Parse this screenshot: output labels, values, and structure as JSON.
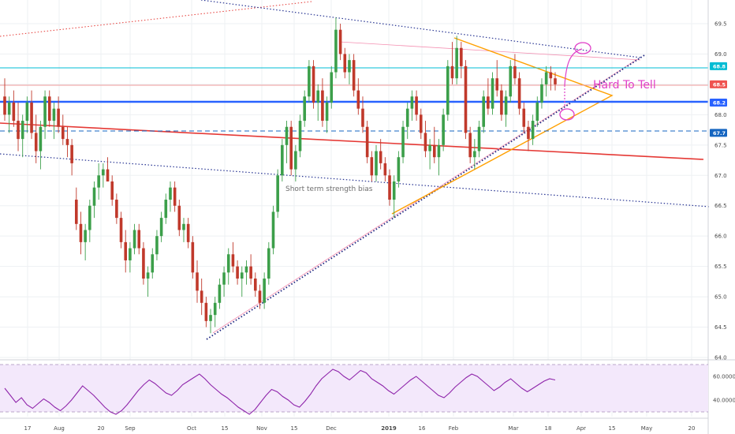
{
  "chart_data": [
    {
      "type": "candlestick",
      "ylim": [
        64.0,
        69.7
      ],
      "price_axis_ticks": [
        "69.5",
        "69.0",
        "68.5",
        "68.0",
        "67.5",
        "67.0",
        "66.5",
        "66.0",
        "65.5",
        "65.0",
        "64.5",
        "64.0"
      ],
      "price_badges": [
        {
          "label": "68.8",
          "color": "#00bcd4"
        },
        {
          "label": "68.5",
          "color": "#ef5350"
        },
        {
          "label": "68.2",
          "color": "#2962ff"
        },
        {
          "label": "67.7",
          "color": "#1565c0"
        }
      ],
      "annotations": {
        "middle_text": "Short term strength bias",
        "hard_to_tell": "Hard To Tell"
      },
      "candles_ohlc": [
        [
          68.3,
          68.6,
          67.9,
          68.0
        ],
        [
          68.0,
          68.3,
          67.7,
          68.2
        ],
        [
          68.2,
          68.4,
          67.8,
          67.9
        ],
        [
          67.9,
          68.2,
          67.4,
          67.6
        ],
        [
          67.6,
          68.0,
          67.3,
          67.9
        ],
        [
          67.9,
          68.3,
          67.7,
          68.2
        ],
        [
          68.2,
          68.4,
          67.6,
          67.7
        ],
        [
          67.7,
          68.0,
          67.2,
          67.4
        ],
        [
          67.4,
          67.9,
          67.1,
          67.8
        ],
        [
          67.8,
          68.4,
          67.6,
          68.3
        ],
        [
          68.3,
          68.4,
          67.8,
          67.9
        ],
        [
          67.9,
          68.2,
          67.6,
          68.1
        ],
        [
          68.1,
          68.3,
          67.7,
          67.8
        ],
        [
          67.8,
          68.0,
          67.5,
          67.6
        ],
        [
          67.6,
          67.8,
          67.3,
          67.5
        ],
        [
          67.5,
          67.6,
          67.0,
          67.2
        ],
        [
          66.6,
          66.8,
          66.1,
          66.2
        ],
        [
          66.2,
          66.4,
          65.7,
          65.9
        ],
        [
          65.9,
          66.2,
          65.6,
          66.1
        ],
        [
          66.1,
          66.6,
          65.9,
          66.5
        ],
        [
          66.5,
          66.9,
          66.3,
          66.8
        ],
        [
          66.8,
          67.2,
          66.6,
          67.0
        ],
        [
          67.0,
          67.2,
          66.8,
          67.1
        ],
        [
          67.1,
          67.3,
          66.9,
          66.9
        ],
        [
          66.9,
          67.0,
          66.5,
          66.6
        ],
        [
          66.6,
          66.7,
          66.2,
          66.3
        ],
        [
          66.3,
          66.4,
          65.8,
          65.9
        ],
        [
          65.9,
          66.1,
          65.4,
          65.6
        ],
        [
          65.6,
          65.9,
          65.4,
          65.8
        ],
        [
          65.8,
          66.2,
          65.7,
          66.1
        ],
        [
          66.1,
          66.2,
          65.7,
          65.8
        ],
        [
          65.8,
          65.9,
          65.2,
          65.3
        ],
        [
          65.3,
          65.5,
          65.0,
          65.4
        ],
        [
          65.4,
          65.8,
          65.3,
          65.7
        ],
        [
          65.7,
          66.1,
          65.6,
          66.0
        ],
        [
          66.0,
          66.4,
          65.9,
          66.3
        ],
        [
          66.3,
          66.7,
          66.2,
          66.6
        ],
        [
          66.6,
          66.9,
          66.4,
          66.8
        ],
        [
          66.8,
          66.9,
          66.4,
          66.5
        ],
        [
          66.5,
          66.6,
          66.0,
          66.1
        ],
        [
          66.1,
          66.3,
          65.9,
          66.2
        ],
        [
          66.2,
          66.3,
          65.8,
          65.9
        ],
        [
          65.9,
          66.0,
          65.3,
          65.4
        ],
        [
          65.4,
          65.6,
          64.9,
          65.1
        ],
        [
          65.1,
          65.3,
          64.7,
          64.9
        ],
        [
          64.9,
          65.0,
          64.5,
          64.6
        ],
        [
          64.6,
          64.8,
          64.4,
          64.7
        ],
        [
          64.7,
          65.0,
          64.5,
          64.9
        ],
        [
          64.9,
          65.3,
          64.8,
          65.2
        ],
        [
          65.2,
          65.5,
          65.0,
          65.4
        ],
        [
          65.4,
          65.8,
          65.2,
          65.7
        ],
        [
          65.7,
          65.9,
          65.4,
          65.5
        ],
        [
          65.5,
          65.6,
          65.2,
          65.3
        ],
        [
          65.3,
          65.5,
          65.0,
          65.4
        ],
        [
          65.4,
          65.6,
          65.2,
          65.5
        ],
        [
          65.5,
          65.7,
          65.2,
          65.3
        ],
        [
          65.3,
          65.4,
          65.0,
          65.1
        ],
        [
          65.1,
          65.2,
          64.8,
          64.9
        ],
        [
          64.9,
          65.4,
          64.8,
          65.3
        ],
        [
          65.3,
          65.9,
          65.2,
          65.8
        ],
        [
          65.8,
          66.5,
          65.7,
          66.4
        ],
        [
          66.4,
          67.1,
          66.3,
          67.0
        ],
        [
          67.0,
          67.6,
          66.9,
          67.5
        ],
        [
          67.5,
          67.9,
          67.2,
          67.8
        ],
        [
          67.8,
          67.9,
          67.0,
          67.1
        ],
        [
          67.1,
          67.5,
          66.9,
          67.4
        ],
        [
          67.4,
          68.0,
          67.3,
          67.9
        ],
        [
          67.9,
          68.4,
          67.8,
          68.3
        ],
        [
          68.3,
          68.9,
          68.2,
          68.8
        ],
        [
          68.8,
          68.9,
          68.1,
          68.2
        ],
        [
          68.2,
          68.5,
          67.9,
          68.4
        ],
        [
          68.4,
          68.6,
          67.8,
          67.9
        ],
        [
          67.9,
          68.3,
          67.7,
          68.2
        ],
        [
          68.2,
          68.8,
          68.1,
          68.7
        ],
        [
          68.7,
          69.6,
          68.6,
          69.4
        ],
        [
          69.4,
          69.5,
          68.9,
          69.0
        ],
        [
          69.0,
          69.1,
          68.6,
          68.7
        ],
        [
          68.7,
          69.0,
          68.5,
          68.9
        ],
        [
          68.9,
          69.0,
          68.3,
          68.4
        ],
        [
          68.4,
          68.6,
          68.0,
          68.1
        ],
        [
          68.1,
          68.3,
          67.7,
          67.8
        ],
        [
          67.8,
          67.9,
          67.2,
          67.3
        ],
        [
          67.3,
          67.4,
          66.9,
          67.0
        ],
        [
          67.0,
          67.5,
          66.9,
          67.4
        ],
        [
          67.4,
          67.6,
          67.1,
          67.2
        ],
        [
          67.2,
          67.3,
          66.9,
          67.0
        ],
        [
          67.0,
          67.1,
          66.5,
          66.6
        ],
        [
          66.6,
          67.0,
          66.3,
          66.9
        ],
        [
          66.9,
          67.4,
          66.8,
          67.3
        ],
        [
          67.3,
          67.9,
          67.2,
          67.8
        ],
        [
          67.8,
          68.2,
          67.6,
          68.1
        ],
        [
          68.1,
          68.4,
          67.9,
          68.3
        ],
        [
          68.3,
          68.4,
          67.9,
          68.0
        ],
        [
          68.0,
          68.1,
          67.6,
          67.7
        ],
        [
          67.7,
          67.9,
          67.3,
          67.4
        ],
        [
          67.4,
          67.6,
          67.1,
          67.5
        ],
        [
          67.5,
          67.8,
          67.2,
          67.3
        ],
        [
          67.3,
          67.6,
          67.0,
          67.5
        ],
        [
          67.5,
          68.1,
          67.4,
          68.0
        ],
        [
          68.0,
          68.9,
          67.9,
          68.8
        ],
        [
          68.8,
          69.2,
          68.5,
          68.6
        ],
        [
          68.6,
          69.3,
          68.5,
          69.1
        ],
        [
          69.1,
          69.2,
          68.6,
          68.8
        ],
        [
          68.8,
          68.9,
          67.6,
          67.7
        ],
        [
          67.7,
          67.8,
          67.2,
          67.3
        ],
        [
          67.3,
          67.6,
          67.1,
          67.4
        ],
        [
          67.4,
          67.9,
          67.3,
          67.8
        ],
        [
          67.8,
          68.4,
          67.7,
          68.3
        ],
        [
          68.3,
          68.6,
          68.0,
          68.1
        ],
        [
          68.1,
          68.7,
          68.0,
          68.6
        ],
        [
          68.6,
          68.9,
          68.3,
          68.4
        ],
        [
          68.4,
          68.5,
          67.9,
          68.0
        ],
        [
          68.0,
          68.4,
          67.8,
          68.3
        ],
        [
          68.3,
          68.9,
          68.2,
          68.8
        ],
        [
          68.8,
          69.0,
          68.5,
          68.6
        ],
        [
          68.6,
          68.7,
          68.0,
          68.1
        ],
        [
          68.1,
          68.2,
          67.7,
          67.8
        ],
        [
          67.8,
          67.9,
          67.4,
          67.6
        ],
        [
          67.6,
          68.0,
          67.5,
          67.9
        ],
        [
          67.9,
          68.3,
          67.8,
          68.2
        ],
        [
          68.2,
          68.6,
          68.1,
          68.5
        ],
        [
          68.5,
          68.8,
          68.3,
          68.7
        ],
        [
          68.7,
          68.8,
          68.4,
          68.6
        ],
        [
          68.6,
          68.7,
          68.4,
          68.5
        ]
      ],
      "rsi": {
        "ticks": [
          "60.0000",
          "40.0000"
        ],
        "values": [
          50,
          44,
          38,
          42,
          36,
          33,
          37,
          41,
          38,
          34,
          31,
          35,
          40,
          46,
          52,
          48,
          44,
          39,
          34,
          30,
          28,
          31,
          36,
          42,
          48,
          53,
          57,
          54,
          50,
          46,
          44,
          48,
          53,
          56,
          59,
          62,
          58,
          53,
          49,
          45,
          42,
          38,
          34,
          31,
          28,
          32,
          38,
          44,
          49,
          47,
          43,
          40,
          36,
          34,
          39,
          45,
          52,
          58,
          62,
          66,
          64,
          60,
          57,
          61,
          65,
          63,
          58,
          55,
          52,
          48,
          45,
          49,
          53,
          57,
          60,
          56,
          52,
          48,
          44,
          42,
          46,
          51,
          55,
          59,
          62,
          60,
          56,
          52,
          48,
          51,
          55,
          58,
          54,
          50,
          47,
          50,
          53,
          56,
          58,
          57
        ]
      }
    }
  ],
  "x_axis_ticks": [
    "17",
    "Aug",
    "20",
    "Sep",
    "Oct",
    "15",
    "Nov",
    "15",
    "Dec",
    "2019",
    "16",
    "Feb",
    "Mar",
    "18",
    "Apr",
    "15",
    "May",
    "20"
  ]
}
